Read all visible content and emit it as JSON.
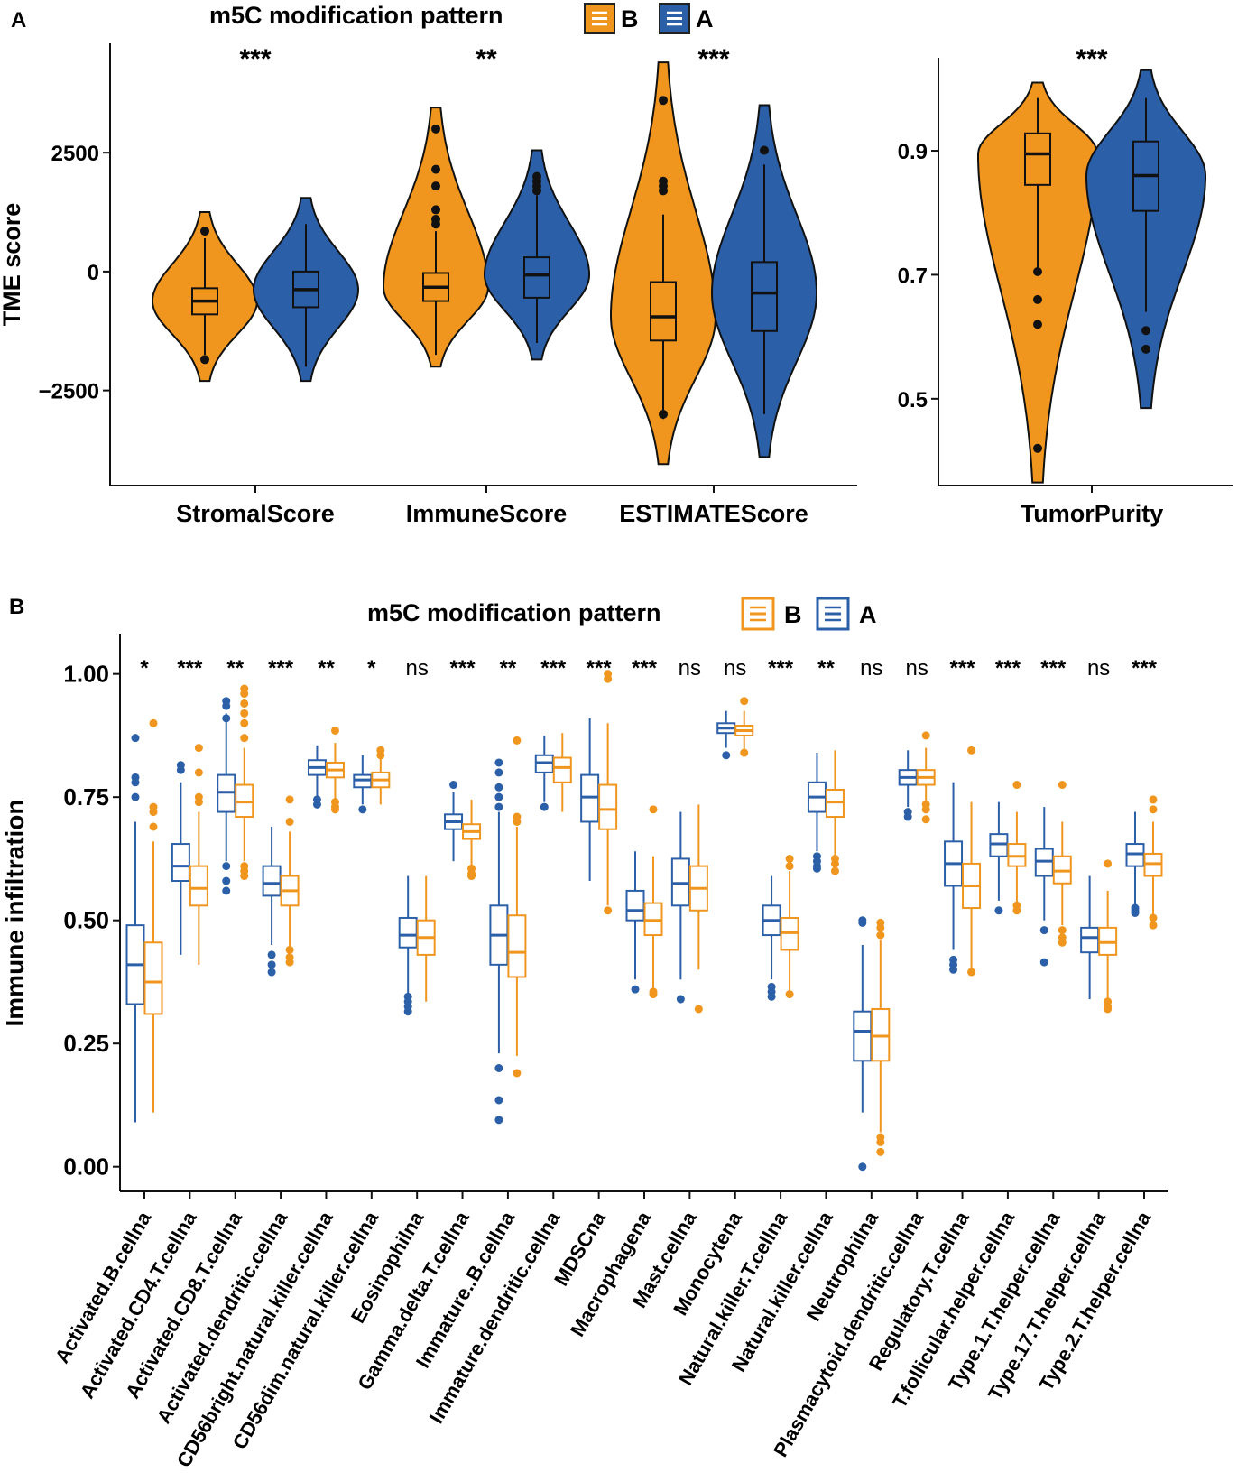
{
  "colors": {
    "B": "#F0961E",
    "A": "#2B5FA8",
    "axis": "#111111"
  },
  "panelA": {
    "panel_label": "A",
    "legend": {
      "title": "m5C modification pattern",
      "items": [
        {
          "group": "B",
          "label": "B"
        },
        {
          "group": "A",
          "label": "A"
        }
      ]
    }
  },
  "panelB": {
    "panel_label": "B",
    "legend": {
      "title": "m5C modification pattern",
      "items": [
        {
          "group": "B",
          "label": "B"
        },
        {
          "group": "A",
          "label": "A"
        }
      ]
    }
  },
  "chart_data": [
    {
      "type": "violin",
      "title": "m5C modification pattern",
      "ylabel": "TME score",
      "ylim": [
        -4500,
        4800
      ],
      "yticks": [
        -2500,
        0,
        2500
      ],
      "ytick_labels": [
        "−2500",
        "0",
        "2500"
      ],
      "groups": [
        "B",
        "A"
      ],
      "categories": [
        {
          "name": "StromalScore",
          "significance": "***",
          "B": {
            "median": -620,
            "q1": -900,
            "q3": -350,
            "whisker_low": -1750,
            "whisker_high": 700,
            "min": -2300,
            "max": 1250,
            "outliers": [
              850,
              -1850
            ]
          },
          "A": {
            "median": -380,
            "q1": -750,
            "q3": 0,
            "whisker_low": -2000,
            "whisker_high": 1000,
            "min": -2300,
            "max": 1550,
            "outliers": []
          }
        },
        {
          "name": "ImmuneScore",
          "significance": "**",
          "B": {
            "median": -330,
            "q1": -620,
            "q3": -30,
            "whisker_low": -1750,
            "whisker_high": 850,
            "min": -2000,
            "max": 3450,
            "outliers": [
              3000,
              2150,
              1800,
              1300,
              1100,
              1000
            ]
          },
          "A": {
            "median": -70,
            "q1": -550,
            "q3": 300,
            "whisker_low": -1500,
            "whisker_high": 1600,
            "min": -1850,
            "max": 2550,
            "outliers": [
              2000,
              1900,
              1800,
              1700
            ]
          }
        },
        {
          "name": "ESTIMATEScore",
          "significance": "***",
          "B": {
            "median": -950,
            "q1": -1450,
            "q3": -220,
            "whisker_low": -3100,
            "whisker_high": 1200,
            "min": -4050,
            "max": 4400,
            "outliers": [
              3600,
              1900,
              1800,
              1700,
              -3000
            ]
          },
          "A": {
            "median": -450,
            "q1": -1250,
            "q3": 200,
            "whisker_low": -3000,
            "whisker_high": 2250,
            "min": -3900,
            "max": 3500,
            "outliers": [
              2550
            ]
          }
        }
      ]
    },
    {
      "type": "violin",
      "ylabel": "",
      "ylim": [
        0.36,
        1.05
      ],
      "yticks": [
        0.5,
        0.7,
        0.9
      ],
      "ytick_labels": [
        "0.5",
        "0.7",
        "0.9"
      ],
      "groups": [
        "B",
        "A"
      ],
      "categories": [
        {
          "name": "TumorPurity",
          "significance": "***",
          "B": {
            "median": 0.895,
            "q1": 0.845,
            "q3": 0.928,
            "whisker_low": 0.71,
            "whisker_high": 0.985,
            "min": 0.365,
            "max": 1.01,
            "outliers": [
              0.705,
              0.66,
              0.62,
              0.42
            ]
          },
          "A": {
            "median": 0.86,
            "q1": 0.803,
            "q3": 0.915,
            "whisker_low": 0.64,
            "whisker_high": 0.985,
            "min": 0.485,
            "max": 1.03,
            "outliers": [
              0.61,
              0.58
            ]
          }
        }
      ]
    },
    {
      "type": "boxplot",
      "title": "m5C modification pattern",
      "ylabel": "Immune infiltration",
      "ylim": [
        -0.05,
        1.08
      ],
      "yticks": [
        0.0,
        0.25,
        0.5,
        0.75,
        1.0
      ],
      "ytick_labels": [
        "0.00",
        "0.25",
        "0.50",
        "0.75",
        "1.00"
      ],
      "groups": [
        "A",
        "B"
      ],
      "categories": [
        {
          "name": "Activated.B.cellna",
          "significance": "*",
          "A": {
            "median": 0.41,
            "q1": 0.33,
            "q3": 0.49,
            "low": 0.09,
            "high": 0.7,
            "outliers": [
              0.87,
              0.79,
              0.78,
              0.75
            ]
          },
          "B": {
            "median": 0.375,
            "q1": 0.31,
            "q3": 0.455,
            "low": 0.11,
            "high": 0.66,
            "outliers": [
              0.9,
              0.73,
              0.72,
              0.69
            ]
          }
        },
        {
          "name": "Activated.CD4.T.cellna",
          "significance": "***",
          "A": {
            "median": 0.61,
            "q1": 0.58,
            "q3": 0.655,
            "low": 0.43,
            "high": 0.78,
            "outliers": [
              0.815,
              0.805
            ]
          },
          "B": {
            "median": 0.565,
            "q1": 0.53,
            "q3": 0.61,
            "low": 0.41,
            "high": 0.72,
            "outliers": [
              0.85,
              0.8,
              0.75,
              0.74
            ]
          }
        },
        {
          "name": "Activated.CD8.T.cellna",
          "significance": "**",
          "A": {
            "median": 0.76,
            "q1": 0.72,
            "q3": 0.795,
            "low": 0.62,
            "high": 0.92,
            "outliers": [
              0.945,
              0.935,
              0.91,
              0.61,
              0.58,
              0.56
            ]
          },
          "B": {
            "median": 0.74,
            "q1": 0.71,
            "q3": 0.775,
            "low": 0.62,
            "high": 0.85,
            "outliers": [
              0.97,
              0.96,
              0.94,
              0.92,
              0.9,
              0.87,
              0.61,
              0.6,
              0.59
            ]
          }
        },
        {
          "name": "Activated.dendritic.cellna",
          "significance": "***",
          "A": {
            "median": 0.575,
            "q1": 0.55,
            "q3": 0.61,
            "low": 0.45,
            "high": 0.69,
            "outliers": [
              0.43,
              0.41,
              0.395
            ]
          },
          "B": {
            "median": 0.56,
            "q1": 0.53,
            "q3": 0.59,
            "low": 0.44,
            "high": 0.68,
            "outliers": [
              0.745,
              0.7,
              0.44,
              0.425,
              0.415
            ]
          }
        },
        {
          "name": "CD56bright.natural.killer.cellna",
          "significance": "**",
          "A": {
            "median": 0.81,
            "q1": 0.795,
            "q3": 0.825,
            "low": 0.75,
            "high": 0.855,
            "outliers": [
              0.745,
              0.735
            ]
          },
          "B": {
            "median": 0.805,
            "q1": 0.79,
            "q3": 0.82,
            "low": 0.745,
            "high": 0.86,
            "outliers": [
              0.885,
              0.74,
              0.73,
              0.725
            ]
          }
        },
        {
          "name": "CD56dim.natural.killer.cellna",
          "significance": "*",
          "A": {
            "median": 0.785,
            "q1": 0.77,
            "q3": 0.795,
            "low": 0.735,
            "high": 0.835,
            "outliers": [
              0.725
            ]
          },
          "B": {
            "median": 0.785,
            "q1": 0.77,
            "q3": 0.8,
            "low": 0.735,
            "high": 0.84,
            "outliers": [
              0.845,
              0.835
            ]
          }
        },
        {
          "name": "Eosinophilna",
          "significance": "ns",
          "A": {
            "median": 0.47,
            "q1": 0.445,
            "q3": 0.505,
            "low": 0.35,
            "high": 0.59,
            "outliers": [
              0.345,
              0.335,
              0.325,
              0.315
            ]
          },
          "B": {
            "median": 0.465,
            "q1": 0.43,
            "q3": 0.5,
            "low": 0.335,
            "high": 0.59,
            "outliers": []
          }
        },
        {
          "name": "Gamma.delta.T.cellna",
          "significance": "***",
          "A": {
            "median": 0.7,
            "q1": 0.685,
            "q3": 0.715,
            "low": 0.62,
            "high": 0.76,
            "outliers": [
              0.775
            ]
          },
          "B": {
            "median": 0.68,
            "q1": 0.665,
            "q3": 0.695,
            "low": 0.61,
            "high": 0.745,
            "outliers": [
              0.605,
              0.595,
              0.59
            ]
          }
        },
        {
          "name": "Immature..B.cellna",
          "significance": "**",
          "A": {
            "median": 0.47,
            "q1": 0.41,
            "q3": 0.53,
            "low": 0.23,
            "high": 0.72,
            "outliers": [
              0.82,
              0.8,
              0.77,
              0.75,
              0.73,
              0.2,
              0.135,
              0.095
            ]
          },
          "B": {
            "median": 0.435,
            "q1": 0.385,
            "q3": 0.51,
            "low": 0.225,
            "high": 0.69,
            "outliers": [
              0.865,
              0.71,
              0.7,
              0.19
            ]
          }
        },
        {
          "name": "Immature.dendritic.cellna",
          "significance": "***",
          "A": {
            "median": 0.82,
            "q1": 0.8,
            "q3": 0.835,
            "low": 0.74,
            "high": 0.875,
            "outliers": [
              0.73
            ]
          },
          "B": {
            "median": 0.81,
            "q1": 0.78,
            "q3": 0.83,
            "low": 0.72,
            "high": 0.88,
            "outliers": []
          }
        },
        {
          "name": "MDSCna",
          "significance": "***",
          "A": {
            "median": 0.75,
            "q1": 0.7,
            "q3": 0.795,
            "low": 0.58,
            "high": 0.91,
            "outliers": []
          },
          "B": {
            "median": 0.725,
            "q1": 0.685,
            "q3": 0.775,
            "low": 0.53,
            "high": 0.9,
            "outliers": [
              1.0,
              0.99,
              0.52
            ]
          }
        },
        {
          "name": "Macrophagena",
          "significance": "***",
          "A": {
            "median": 0.52,
            "q1": 0.5,
            "q3": 0.56,
            "low": 0.38,
            "high": 0.64,
            "outliers": [
              0.36
            ]
          },
          "B": {
            "median": 0.5,
            "q1": 0.47,
            "q3": 0.535,
            "low": 0.36,
            "high": 0.63,
            "outliers": [
              0.725,
              0.355,
              0.35
            ]
          }
        },
        {
          "name": "Mast.cellna",
          "significance": "ns",
          "A": {
            "median": 0.575,
            "q1": 0.53,
            "q3": 0.625,
            "low": 0.38,
            "high": 0.72,
            "outliers": [
              0.34
            ]
          },
          "B": {
            "median": 0.565,
            "q1": 0.52,
            "q3": 0.61,
            "low": 0.4,
            "high": 0.735,
            "outliers": [
              0.32
            ]
          }
        },
        {
          "name": "Monocytena",
          "significance": "ns",
          "A": {
            "median": 0.89,
            "q1": 0.88,
            "q3": 0.9,
            "low": 0.85,
            "high": 0.925,
            "outliers": [
              0.835
            ]
          },
          "B": {
            "median": 0.885,
            "q1": 0.875,
            "q3": 0.895,
            "low": 0.845,
            "high": 0.925,
            "outliers": [
              0.945,
              0.84
            ]
          }
        },
        {
          "name": "Natural.killer.T.cellna",
          "significance": "***",
          "A": {
            "median": 0.5,
            "q1": 0.47,
            "q3": 0.53,
            "low": 0.38,
            "high": 0.59,
            "outliers": [
              0.365,
              0.355,
              0.345
            ]
          },
          "B": {
            "median": 0.475,
            "q1": 0.44,
            "q3": 0.505,
            "low": 0.35,
            "high": 0.6,
            "outliers": [
              0.625,
              0.61,
              0.35
            ]
          }
        },
        {
          "name": "Natural.killer.cellna",
          "significance": "**",
          "A": {
            "median": 0.75,
            "q1": 0.72,
            "q3": 0.78,
            "low": 0.64,
            "high": 0.84,
            "outliers": [
              0.63,
              0.62,
              0.61,
              0.605
            ]
          },
          "B": {
            "median": 0.74,
            "q1": 0.71,
            "q3": 0.765,
            "low": 0.63,
            "high": 0.845,
            "outliers": [
              0.625,
              0.615,
              0.6
            ]
          }
        },
        {
          "name": "Neutrophilna",
          "significance": "ns",
          "A": {
            "median": 0.275,
            "q1": 0.215,
            "q3": 0.315,
            "low": 0.11,
            "high": 0.45,
            "outliers": [
              0.5,
              0.495,
              0.0
            ]
          },
          "B": {
            "median": 0.265,
            "q1": 0.215,
            "q3": 0.32,
            "low": 0.07,
            "high": 0.46,
            "outliers": [
              0.495,
              0.485,
              0.47,
              0.06,
              0.05,
              0.03
            ]
          }
        },
        {
          "name": "Plasmacytoid.dendritic.cellna",
          "significance": "ns",
          "A": {
            "median": 0.79,
            "q1": 0.775,
            "q3": 0.805,
            "low": 0.73,
            "high": 0.845,
            "outliers": [
              0.72,
              0.71
            ]
          },
          "B": {
            "median": 0.79,
            "q1": 0.775,
            "q3": 0.805,
            "low": 0.735,
            "high": 0.85,
            "outliers": [
              0.875,
              0.735,
              0.725,
              0.705
            ]
          }
        },
        {
          "name": "Regulatory.T.cellna",
          "significance": "***",
          "A": {
            "median": 0.615,
            "q1": 0.57,
            "q3": 0.66,
            "low": 0.44,
            "high": 0.78,
            "outliers": [
              0.42,
              0.41,
              0.4
            ]
          },
          "B": {
            "median": 0.57,
            "q1": 0.525,
            "q3": 0.615,
            "low": 0.4,
            "high": 0.74,
            "outliers": [
              0.845,
              0.395
            ]
          }
        },
        {
          "name": "T.follicular.helper.cellna",
          "significance": "***",
          "A": {
            "median": 0.655,
            "q1": 0.63,
            "q3": 0.675,
            "low": 0.54,
            "high": 0.74,
            "outliers": [
              0.52
            ]
          },
          "B": {
            "median": 0.63,
            "q1": 0.61,
            "q3": 0.655,
            "low": 0.53,
            "high": 0.72,
            "outliers": [
              0.775,
              0.53,
              0.52
            ]
          }
        },
        {
          "name": "Type.1.T.helper.cellna",
          "significance": "***",
          "A": {
            "median": 0.62,
            "q1": 0.59,
            "q3": 0.645,
            "low": 0.5,
            "high": 0.73,
            "outliers": [
              0.48,
              0.415
            ]
          },
          "B": {
            "median": 0.6,
            "q1": 0.575,
            "q3": 0.63,
            "low": 0.49,
            "high": 0.7,
            "outliers": [
              0.775,
              0.48,
              0.465,
              0.455
            ]
          }
        },
        {
          "name": "Type.17.T.helper.cellna",
          "significance": "ns",
          "A": {
            "median": 0.465,
            "q1": 0.435,
            "q3": 0.485,
            "low": 0.34,
            "high": 0.59,
            "outliers": []
          },
          "B": {
            "median": 0.455,
            "q1": 0.43,
            "q3": 0.485,
            "low": 0.34,
            "high": 0.56,
            "outliers": [
              0.615,
              0.335,
              0.325,
              0.32
            ]
          }
        },
        {
          "name": "Type.2.T.helper.cellna",
          "significance": "***",
          "A": {
            "median": 0.635,
            "q1": 0.61,
            "q3": 0.655,
            "low": 0.53,
            "high": 0.72,
            "outliers": [
              0.525,
              0.52,
              0.515
            ]
          },
          "B": {
            "median": 0.615,
            "q1": 0.59,
            "q3": 0.635,
            "low": 0.51,
            "high": 0.7,
            "outliers": [
              0.745,
              0.725,
              0.505,
              0.49
            ]
          }
        }
      ]
    }
  ]
}
